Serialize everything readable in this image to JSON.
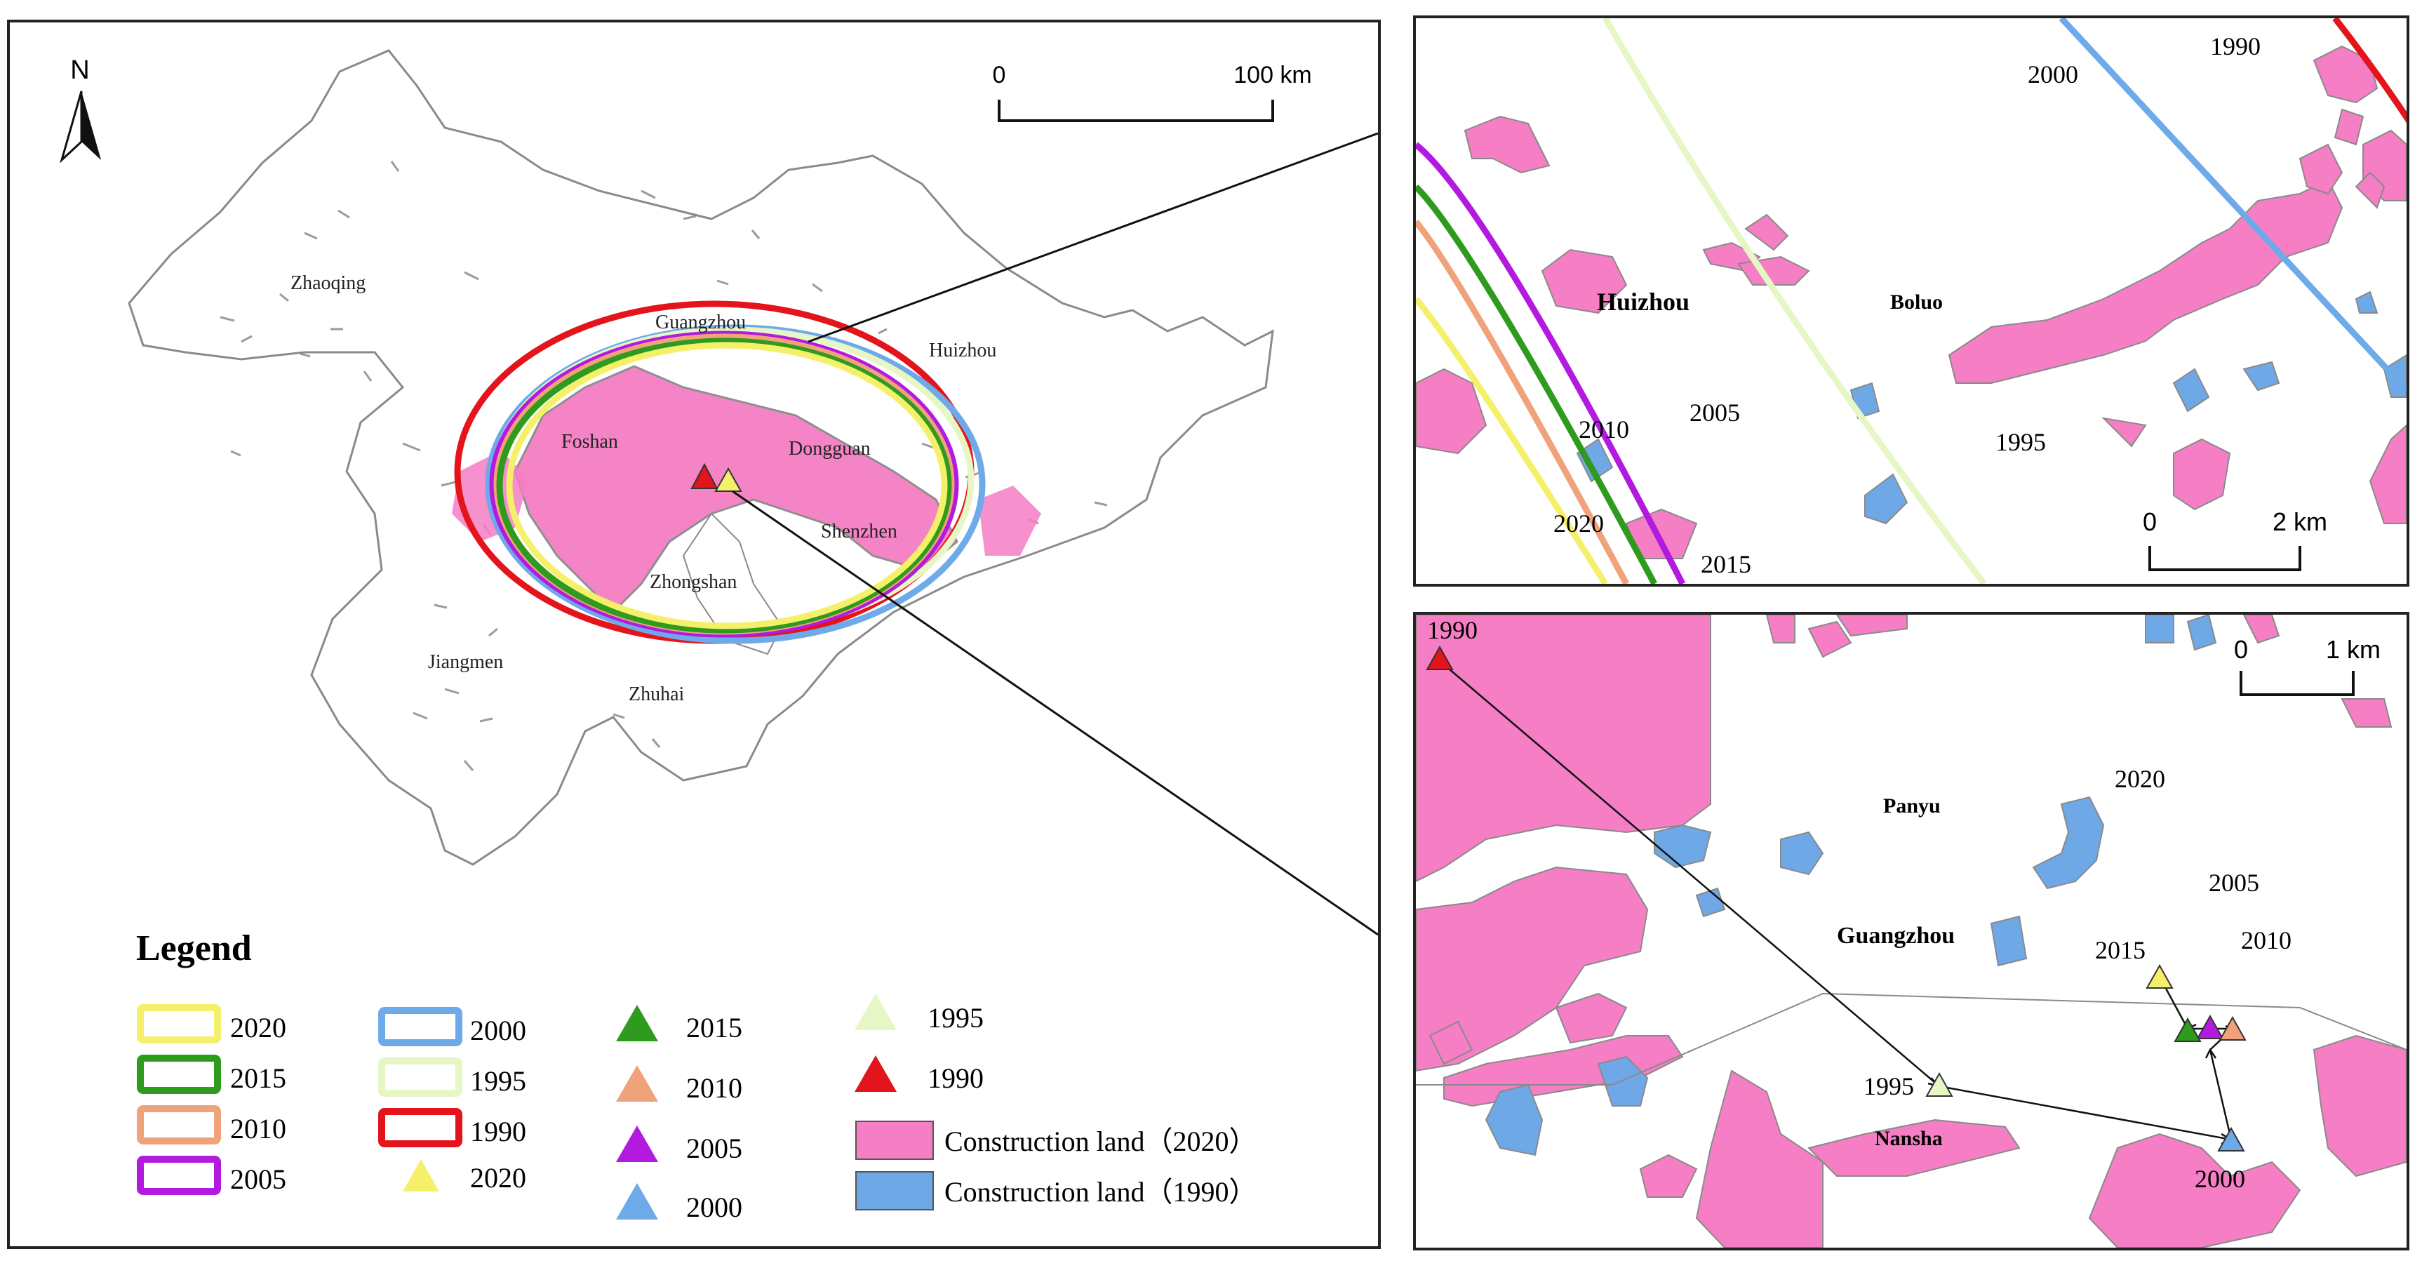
{
  "colors": {
    "y2020": "#f5f06a",
    "y2015": "#2e9a1e",
    "y2010": "#f0a27a",
    "y2005": "#b21ae0",
    "y2000": "#6eaaea",
    "y1995": "#e6f6c4",
    "y1990": "#e3141b",
    "construction_2020": "#f57ec4",
    "construction_1990": "#6fa8e6",
    "boundary": "#777777"
  },
  "main_map": {
    "north_label": "N",
    "scale": {
      "zero": "0",
      "end": "100 km"
    },
    "cities": [
      "Zhaoqing",
      "Guangzhou",
      "Huizhou",
      "Foshan",
      "Dongguan",
      "Shenzhen",
      "Zhongshan",
      "Jiangmen",
      "Zhuhai"
    ]
  },
  "legend": {
    "title": "Legend",
    "ellipses": [
      "2020",
      "2015",
      "2010",
      "2005",
      "2000",
      "1995",
      "1990"
    ],
    "triangles": [
      "2020",
      "2015",
      "2010",
      "2005",
      "2000",
      "1995",
      "1990"
    ],
    "construction_2020": "Construction land（2020）",
    "construction_1990": "Construction land（1990）"
  },
  "inset_top": {
    "place_huizhou": "Huizhou",
    "place_boluo": "Boluo",
    "scale": {
      "zero": "0",
      "end": "2 km"
    },
    "ellipse_labels": {
      "y1990": "1990",
      "y2000": "2000",
      "y1995": "1995",
      "y2005": "2005",
      "y2010": "2010",
      "y2020": "2020",
      "y2015": "2015"
    }
  },
  "inset_bottom": {
    "place_panyu": "Panyu",
    "place_guangzhou": "Guangzhou",
    "place_nansha": "Nansha",
    "scale": {
      "zero": "0",
      "end": "1 km"
    },
    "center_labels": {
      "y1990": "1990",
      "y2020": "2020",
      "y2005": "2005",
      "y2015": "2015",
      "y2010": "2010",
      "y1995": "1995",
      "y2000": "2000"
    }
  }
}
